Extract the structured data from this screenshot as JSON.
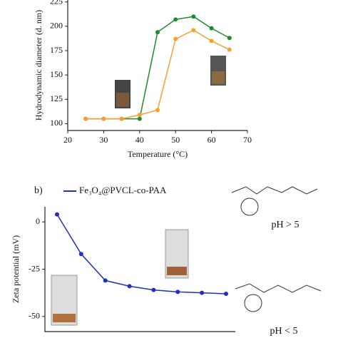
{
  "chart_data": [
    {
      "type": "line",
      "xlabel": "Temperature (°C)",
      "ylabel": "Hydrodynamic diameter (d. nm)",
      "x": [
        25,
        30,
        35,
        40,
        45,
        50,
        55,
        60,
        65
      ],
      "series": [
        {
          "color": "#1e8a2e",
          "values": [
            105,
            105,
            105,
            105,
            194,
            207,
            210,
            198,
            188
          ]
        },
        {
          "color": "#f5a030",
          "values": [
            105,
            105,
            105,
            109,
            114,
            187,
            196,
            185,
            176
          ]
        }
      ],
      "xlim": [
        20,
        70
      ],
      "xticks": [
        20,
        30,
        40,
        50,
        60,
        70
      ],
      "ylim": [
        93,
        227
      ],
      "yticks": [
        100,
        125,
        150,
        175,
        200,
        225
      ]
    },
    {
      "type": "line",
      "panel_label": "b)",
      "ylabel": "Zeta potential (mV)",
      "categories": [
        null,
        null,
        null,
        null,
        null,
        null,
        null,
        null
      ],
      "series": [
        {
          "name": "Fe₃O₄@PVCL-co-PAA",
          "color": "#1f2fc0",
          "values": [
            4,
            -17,
            -31,
            -34,
            -36,
            -37,
            -37.5,
            -38
          ]
        }
      ],
      "ylim": [
        -58,
        8
      ],
      "yticks": [
        0,
        -25,
        -50
      ]
    }
  ],
  "annotations": {
    "upper": "pH > 5",
    "lower": "pH < 5"
  }
}
